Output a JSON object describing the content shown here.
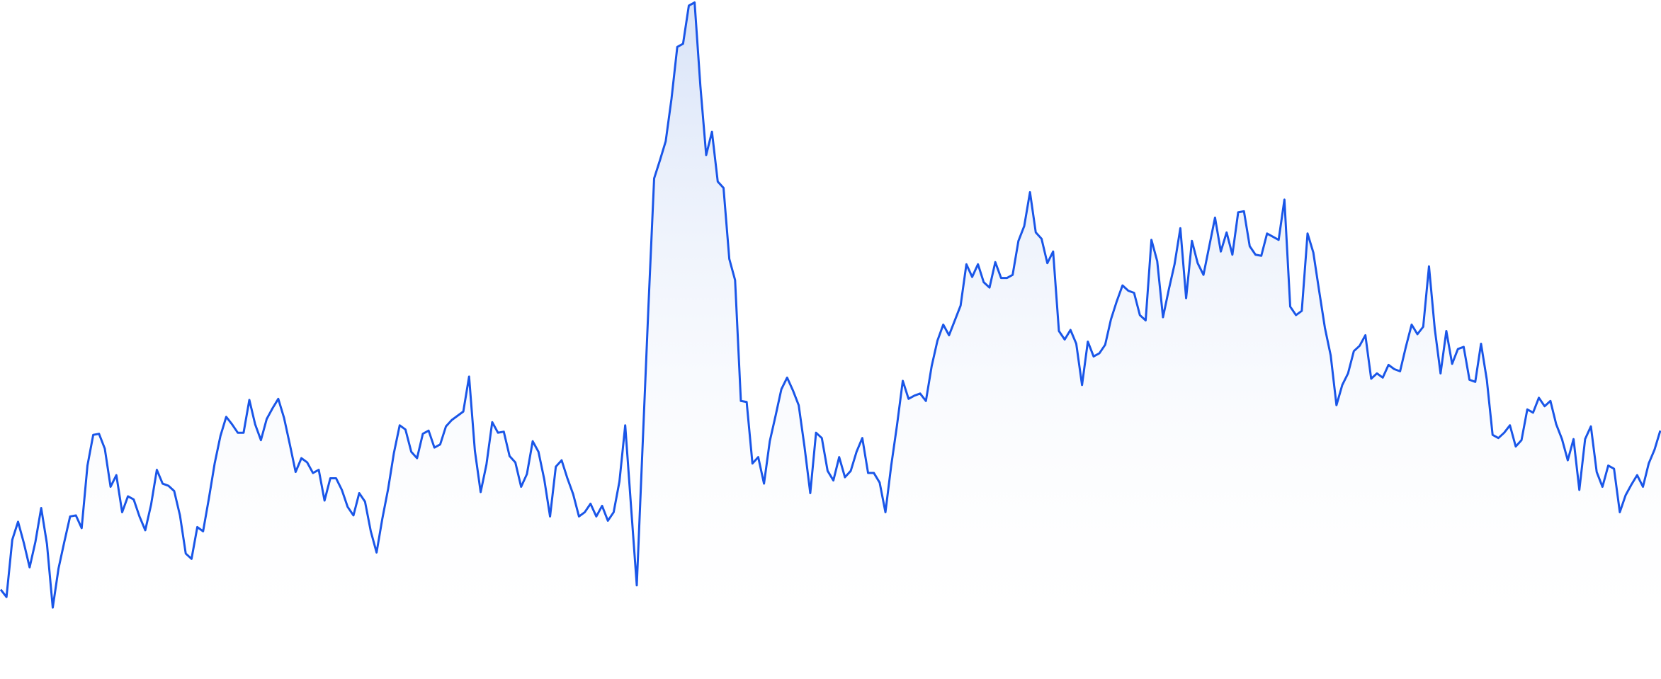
{
  "chart_data": {
    "type": "area",
    "color": "#1a56e8",
    "fill": "#d4e0f7",
    "ylim": [
      0,
      620
    ],
    "values": [
      65,
      58,
      112,
      129,
      109,
      86,
      110,
      142,
      108,
      48,
      85,
      110,
      134,
      135,
      123,
      182,
      211,
      212,
      198,
      162,
      173,
      138,
      153,
      150,
      134,
      121,
      145,
      178,
      165,
      163,
      158,
      135,
      99,
      94,
      124,
      120,
      151,
      184,
      210,
      228,
      221,
      213,
      213,
      244,
      221,
      206,
      226,
      236,
      245,
      227,
      202,
      176,
      189,
      185,
      175,
      178,
      149,
      170,
      170,
      159,
      143,
      135,
      156,
      148,
      120,
      100,
      132,
      160,
      194,
      220,
      216,
      195,
      189,
      212,
      215,
      199,
      202,
      219,
      225,
      229,
      233,
      266,
      196,
      157,
      183,
      223,
      213,
      214,
      191,
      185,
      162,
      174,
      205,
      195,
      169,
      134,
      181,
      187,
      170,
      155,
      134,
      138,
      146,
      134,
      144,
      130,
      138,
      167,
      220,
      144,
      69,
      200,
      330,
      453,
      470,
      488,
      528,
      577,
      580,
      616,
      619,
      540,
      475,
      497,
      450,
      444,
      377,
      357,
      243,
      242,
      184,
      190,
      165,
      205,
      229,
      254,
      265,
      253,
      239,
      200,
      156,
      213,
      208,
      177,
      168,
      190,
      171,
      177,
      195,
      208,
      175,
      175,
      166,
      138,
      182,
      220,
      262,
      245,
      248,
      250,
      243,
      276,
      300,
      315,
      305,
      319,
      333,
      372,
      360,
      372,
      355,
      350,
      374,
      359,
      359,
      362,
      394,
      408,
      440,
      402,
      396,
      373,
      384,
      309,
      301,
      310,
      297,
      258,
      299,
      285,
      288,
      296,
      320,
      337,
      352,
      347,
      345,
      324,
      319,
      395,
      375,
      322,
      348,
      372,
      406,
      340,
      394,
      373,
      362,
      389,
      416,
      384,
      402,
      381,
      421,
      422,
      389,
      381,
      380,
      401,
      398,
      395,
      433,
      332,
      324,
      328,
      401,
      383,
      347,
      312,
      286,
      239,
      258,
      269,
      290,
      295,
      305,
      264,
      269,
      265,
      277,
      273,
      271,
      294,
      315,
      306,
      313,
      370,
      311,
      269,
      309,
      278,
      292,
      294,
      263,
      261,
      297,
      263,
      211,
      208,
      213,
      220,
      200,
      206,
      235,
      232,
      246,
      238,
      243,
      221,
      207,
      187,
      207,
      159,
      207,
      219,
      176,
      162,
      182,
      179,
      138,
      154,
      164,
      173,
      162,
      184,
      197,
      215
    ]
  }
}
